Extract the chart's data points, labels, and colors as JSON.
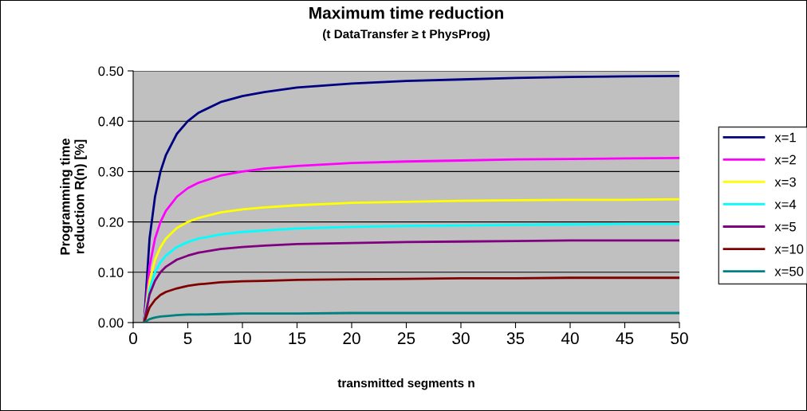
{
  "chart_data": {
    "type": "line",
    "title": "Maximum time reduction",
    "subtitle": "(t DataTransfer ≥ t PhysProg)",
    "xlabel": "transmitted segments n",
    "ylabel": "Programming time\nreduction R(n) [%]",
    "x": [
      1,
      1.5,
      2,
      2.5,
      3,
      4,
      5,
      6,
      8,
      10,
      12,
      15,
      20,
      25,
      30,
      35,
      40,
      45,
      50
    ],
    "series": [
      {
        "name": "x=1",
        "color": "#000080",
        "values": [
          0,
          0.167,
          0.25,
          0.3,
          0.333,
          0.375,
          0.4,
          0.417,
          0.438,
          0.45,
          0.458,
          0.467,
          0.475,
          0.48,
          0.483,
          0.486,
          0.488,
          0.489,
          0.49
        ]
      },
      {
        "name": "x=2",
        "color": "#ff00ff",
        "values": [
          0,
          0.111,
          0.167,
          0.2,
          0.222,
          0.25,
          0.267,
          0.278,
          0.292,
          0.3,
          0.306,
          0.311,
          0.317,
          0.32,
          0.322,
          0.324,
          0.325,
          0.326,
          0.327
        ]
      },
      {
        "name": "x=3",
        "color": "#ffff00",
        "values": [
          0,
          0.083,
          0.125,
          0.15,
          0.167,
          0.188,
          0.2,
          0.208,
          0.219,
          0.225,
          0.229,
          0.233,
          0.238,
          0.24,
          0.242,
          0.243,
          0.244,
          0.244,
          0.245
        ]
      },
      {
        "name": "x=4",
        "color": "#00ffff",
        "values": [
          0,
          0.067,
          0.1,
          0.12,
          0.133,
          0.15,
          0.16,
          0.167,
          0.175,
          0.18,
          0.183,
          0.187,
          0.19,
          0.192,
          0.193,
          0.194,
          0.195,
          0.196,
          0.196
        ]
      },
      {
        "name": "x=5",
        "color": "#800080",
        "values": [
          0,
          0.056,
          0.083,
          0.1,
          0.111,
          0.125,
          0.133,
          0.139,
          0.146,
          0.15,
          0.153,
          0.156,
          0.158,
          0.16,
          0.161,
          0.162,
          0.163,
          0.163,
          0.163
        ]
      },
      {
        "name": "x=10",
        "color": "#800000",
        "values": [
          0,
          0.03,
          0.045,
          0.055,
          0.061,
          0.068,
          0.073,
          0.076,
          0.08,
          0.082,
          0.083,
          0.085,
          0.086,
          0.087,
          0.088,
          0.088,
          0.089,
          0.089,
          0.089
        ]
      },
      {
        "name": "x=50",
        "color": "#008080",
        "values": [
          0,
          0.007,
          0.01,
          0.012,
          0.013,
          0.015,
          0.016,
          0.016,
          0.017,
          0.018,
          0.018,
          0.018,
          0.019,
          0.019,
          0.019,
          0.019,
          0.019,
          0.019,
          0.019
        ]
      }
    ],
    "xlim": [
      0,
      50
    ],
    "xticks": [
      0,
      5,
      10,
      15,
      20,
      25,
      30,
      35,
      40,
      45,
      50
    ],
    "ylim": [
      0,
      0.5
    ],
    "yticks": [
      {
        "value": 0,
        "label": "0.00"
      },
      {
        "value": 0.1,
        "label": "0.10"
      },
      {
        "value": 0.2,
        "label": "0.20"
      },
      {
        "value": 0.3,
        "label": "0.30"
      },
      {
        "value": 0.4,
        "label": "0.40"
      },
      {
        "value": 0.5,
        "label": "0.50"
      }
    ],
    "grid": "y",
    "legend": "right",
    "marker": "none",
    "line_style": "solid"
  }
}
